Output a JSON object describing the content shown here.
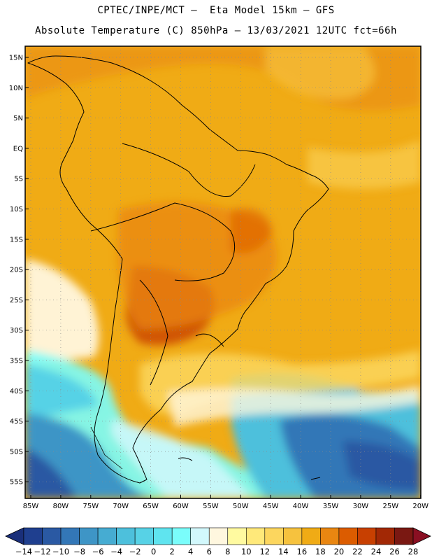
{
  "header": {
    "line1": "CPTEC/INPE/MCT –  Eta Model 15km – GFS",
    "line2": "Absolute Temperature (C) 850hPa – 13/03/2021 12UTC fct=66h"
  },
  "map": {
    "lat_labels": [
      "15N",
      "10N",
      "5N",
      "EQ",
      "5S",
      "10S",
      "15S",
      "20S",
      "25S",
      "30S",
      "35S",
      "40S",
      "45S",
      "50S",
      "55S"
    ],
    "lon_labels": [
      "85W",
      "80W",
      "75W",
      "70W",
      "65W",
      "60W",
      "55W",
      "50W",
      "45W",
      "40W",
      "35W",
      "30W",
      "25W",
      "20W"
    ]
  },
  "colorbar": {
    "labels": [
      "-14",
      "-12",
      "-10",
      "-8",
      "-6",
      "-4",
      "-2",
      "0",
      "2",
      "4",
      "6",
      "8",
      "10",
      "12",
      "14",
      "16",
      "18",
      "20",
      "22",
      "24",
      "26",
      "28"
    ],
    "colors": [
      "#1f3f8f",
      "#2a59a3",
      "#3377b7",
      "#3e95c6",
      "#46acd2",
      "#4dc0dc",
      "#57d2e6",
      "#5fe4ef",
      "#7afdfb",
      "#d2f8fc",
      "#fff7df",
      "#fffaa0",
      "#ffe97a",
      "#fcd65e",
      "#f6c23e",
      "#f0ab15",
      "#e98611",
      "#dc5c00",
      "#c84001",
      "#a22805",
      "#7a1812"
    ]
  },
  "palette": {
    "ocean_mid": "#f0ab15",
    "land_hot": "#e98611",
    "cold_deep": "#2a59a3"
  }
}
